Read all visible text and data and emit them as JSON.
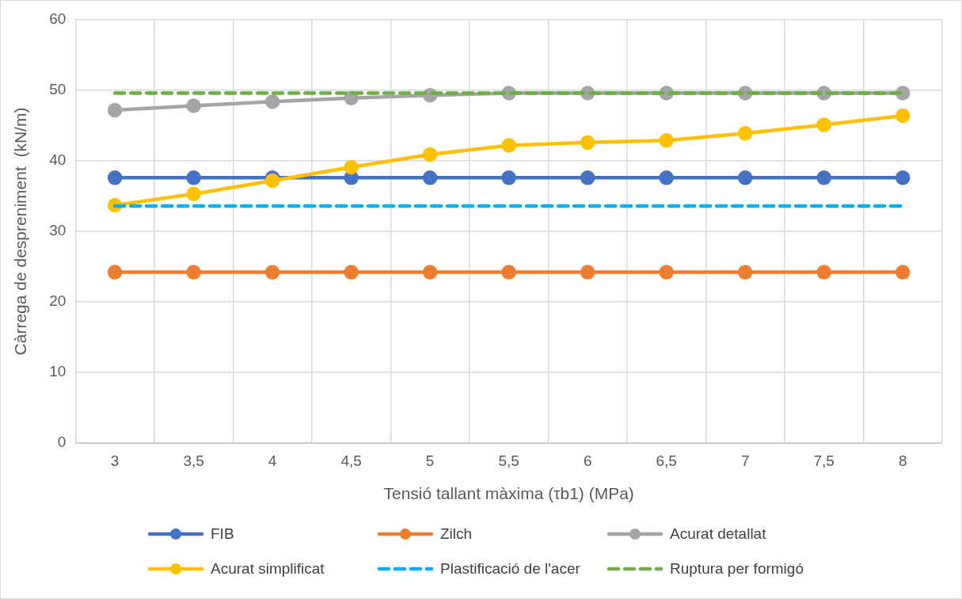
{
  "chart_data": {
    "type": "line",
    "xlabel": "Tensió tallant màxima (τb1) (MPa)",
    "ylabel": "Càrrega de despreniment  (kN/m)",
    "categories": [
      "3",
      "3,5",
      "4",
      "4,5",
      "5",
      "5,5",
      "6",
      "6,5",
      "7",
      "7,5",
      "8"
    ],
    "ylim": [
      0,
      60
    ],
    "yticks": [
      0,
      10,
      20,
      30,
      40,
      50,
      60
    ],
    "grid": true,
    "legend": "bottom",
    "series": [
      {
        "name": "FIB",
        "color": "#4472c4",
        "marker": "circle",
        "line_style": "solid",
        "values": [
          37.6,
          37.6,
          37.6,
          37.6,
          37.6,
          37.6,
          37.6,
          37.6,
          37.6,
          37.6,
          37.6
        ]
      },
      {
        "name": "Zilch",
        "color": "#ed7d31",
        "marker": "circle",
        "line_style": "solid",
        "values": [
          24.2,
          24.2,
          24.2,
          24.2,
          24.2,
          24.2,
          24.2,
          24.2,
          24.2,
          24.2,
          24.2
        ]
      },
      {
        "name": "Acurat detallat",
        "color": "#a5a5a5",
        "marker": "circle",
        "line_style": "solid",
        "values": [
          47.2,
          47.8,
          48.4,
          48.9,
          49.3,
          49.6,
          49.6,
          49.6,
          49.6,
          49.6,
          49.6
        ]
      },
      {
        "name": "Acurat simplificat",
        "color": "#ffc000",
        "marker": "circle",
        "line_style": "solid",
        "values": [
          33.7,
          35.3,
          37.2,
          39.1,
          40.9,
          42.2,
          42.6,
          42.9,
          43.9,
          45.1,
          46.4
        ]
      },
      {
        "name": "Plastificació de l'acer",
        "color": "#00b0f0",
        "marker": "none",
        "line_style": "dashed",
        "values": [
          33.6,
          33.6,
          33.6,
          33.6,
          33.6,
          33.6,
          33.6,
          33.6,
          33.6,
          33.6,
          33.6
        ]
      },
      {
        "name": "Ruptura per formigó",
        "color": "#70ad47",
        "marker": "none",
        "line_style": "dashed",
        "values": [
          49.6,
          49.6,
          49.6,
          49.6,
          49.6,
          49.6,
          49.6,
          49.6,
          49.6,
          49.6,
          49.6
        ]
      }
    ]
  }
}
